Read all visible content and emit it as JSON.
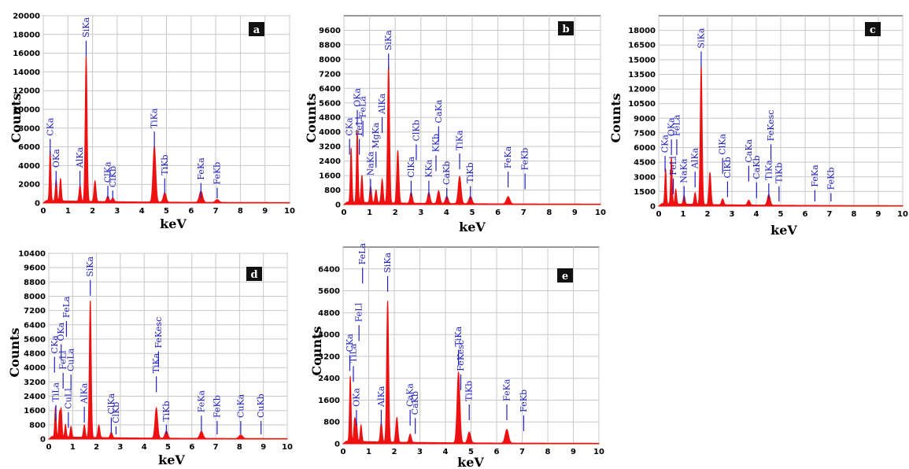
{
  "colors": {
    "spectrum": "#ee1111",
    "peak_label": "#2020c0",
    "grid": "#c8c8c8",
    "plot_bg": "#ffffff"
  },
  "chart_data": [
    {
      "type": "area",
      "panel_label": "a",
      "xlabel": "keV",
      "ylabel": "Counts",
      "xlim": [
        0,
        10
      ],
      "ylim": [
        0,
        20000
      ],
      "x_ticks": [
        0,
        1,
        2,
        3,
        4,
        5,
        6,
        7,
        8,
        9,
        10
      ],
      "y_ticks": [
        0,
        2000,
        4000,
        6000,
        8000,
        10000,
        12000,
        14000,
        16000,
        18000,
        20000
      ],
      "grid": true,
      "peaks": [
        [
          0.28,
          5400
        ],
        [
          0.52,
          2300
        ],
        [
          0.7,
          2400
        ],
        [
          1.49,
          1700
        ],
        [
          1.74,
          15600
        ],
        [
          2.1,
          2200
        ],
        [
          2.62,
          600
        ],
        [
          2.82,
          400
        ],
        [
          4.51,
          6000
        ],
        [
          4.93,
          1000
        ],
        [
          6.4,
          1200
        ],
        [
          7.06,
          300
        ]
      ],
      "peak_labels": [
        {
          "text": "CKa",
          "x": 0.28,
          "y": 7000
        },
        {
          "text": "OKa",
          "x": 0.52,
          "y": 3600
        },
        {
          "text": "AlKa",
          "x": 1.49,
          "y": 3600
        },
        {
          "text": "SiKa",
          "x": 1.74,
          "y": 17500
        },
        {
          "text": "ClKa",
          "x": 2.62,
          "y": 2000
        },
        {
          "text": "ClKb",
          "x": 2.82,
          "y": 1500
        },
        {
          "text": "TiKa",
          "x": 4.51,
          "y": 7800
        },
        {
          "text": "TiKb",
          "x": 4.93,
          "y": 2800
        },
        {
          "text": "FeKa",
          "x": 6.4,
          "y": 2300
        },
        {
          "text": "FeKb",
          "x": 7.06,
          "y": 1800
        }
      ]
    },
    {
      "type": "area",
      "panel_label": "b",
      "xlabel": "keV",
      "ylabel": "Counts",
      "xlim": [
        0,
        10
      ],
      "ylim": [
        0,
        10400
      ],
      "x_ticks": [
        0,
        1,
        2,
        3,
        4,
        5,
        6,
        7,
        8,
        9,
        10
      ],
      "y_ticks": [
        0,
        800,
        1600,
        2400,
        3200,
        4000,
        4800,
        5600,
        6400,
        7200,
        8000,
        8800,
        9600
      ],
      "grid": true,
      "peaks": [
        [
          0.28,
          3000
        ],
        [
          0.52,
          4000
        ],
        [
          0.7,
          1500
        ],
        [
          1.04,
          900
        ],
        [
          1.25,
          700
        ],
        [
          1.49,
          1300
        ],
        [
          1.74,
          7600
        ],
        [
          2.1,
          2900
        ],
        [
          2.62,
          600
        ],
        [
          3.31,
          600
        ],
        [
          3.69,
          700
        ],
        [
          4.01,
          400
        ],
        [
          4.51,
          1500
        ],
        [
          4.93,
          400
        ],
        [
          6.4,
          400
        ]
      ],
      "peak_labels": [
        {
          "text": "CKa",
          "x": 0.22,
          "y": 3700
        },
        {
          "text": "OKa",
          "x": 0.52,
          "y": 5300
        },
        {
          "text": "FeLl",
          "x": 0.6,
          "y": 3700
        },
        {
          "text": "FeLa",
          "x": 0.74,
          "y": 4700
        },
        {
          "text": "NaKa",
          "x": 1.04,
          "y": 1500
        },
        {
          "text": "MgKa",
          "x": 1.25,
          "y": 3000
        },
        {
          "text": "AlKa",
          "x": 1.49,
          "y": 4900
        },
        {
          "text": "SiKa",
          "x": 1.74,
          "y": 8400
        },
        {
          "text": "ClKa",
          "x": 2.62,
          "y": 1400
        },
        {
          "text": "ClKb",
          "x": 2.82,
          "y": 3400
        },
        {
          "text": "KKa",
          "x": 3.31,
          "y": 1400
        },
        {
          "text": "KKb",
          "x": 3.59,
          "y": 2800
        },
        {
          "text": "CaKa",
          "x": 3.69,
          "y": 4400
        },
        {
          "text": "CaKb",
          "x": 4.01,
          "y": 1000
        },
        {
          "text": "TiKa",
          "x": 4.51,
          "y": 2900
        },
        {
          "text": "TiKb",
          "x": 4.93,
          "y": 1100
        },
        {
          "text": "FeKa",
          "x": 6.4,
          "y": 1900
        },
        {
          "text": "FeKb",
          "x": 7.06,
          "y": 1800
        }
      ]
    },
    {
      "type": "area",
      "panel_label": "c",
      "xlabel": "keV",
      "ylabel": "Counts",
      "xlim": [
        0,
        10
      ],
      "ylim": [
        0,
        19500
      ],
      "x_ticks": [
        0,
        1,
        2,
        3,
        4,
        5,
        6,
        7,
        8,
        9,
        10
      ],
      "y_ticks": [
        0,
        1500,
        3000,
        4500,
        6000,
        7500,
        9000,
        10500,
        12000,
        13500,
        15000,
        16500,
        18000
      ],
      "grid": true,
      "peaks": [
        [
          0.28,
          3600
        ],
        [
          0.52,
          4800
        ],
        [
          0.7,
          1500
        ],
        [
          1.04,
          900
        ],
        [
          1.49,
          1200
        ],
        [
          1.74,
          14300
        ],
        [
          2.1,
          3300
        ],
        [
          2.62,
          600
        ],
        [
          3.69,
          500
        ],
        [
          4.51,
          1100
        ]
      ],
      "peak_labels": [
        {
          "text": "CKa",
          "x": 0.26,
          "y": 5300
        },
        {
          "text": "OKa",
          "x": 0.52,
          "y": 7000
        },
        {
          "text": "FeLl",
          "x": 0.6,
          "y": 3000
        },
        {
          "text": "FeLa",
          "x": 0.74,
          "y": 7000
        },
        {
          "text": "NaKa",
          "x": 1.04,
          "y": 2200
        },
        {
          "text": "AlKa",
          "x": 1.49,
          "y": 3700
        },
        {
          "text": "SiKa",
          "x": 1.74,
          "y": 16000
        },
        {
          "text": "ClKa",
          "x": 2.62,
          "y": 5100
        },
        {
          "text": "ClKb",
          "x": 2.82,
          "y": 2700
        },
        {
          "text": "CaKa",
          "x": 3.69,
          "y": 4300
        },
        {
          "text": "CaKb",
          "x": 4.01,
          "y": 2600
        },
        {
          "text": "TiKa",
          "x": 4.51,
          "y": 2500
        },
        {
          "text": "FeKesc",
          "x": 4.6,
          "y": 6500
        },
        {
          "text": "TiKb",
          "x": 4.93,
          "y": 2200
        },
        {
          "text": "FeKa",
          "x": 6.4,
          "y": 1800
        },
        {
          "text": "FeKb",
          "x": 7.06,
          "y": 1500
        }
      ]
    },
    {
      "type": "area",
      "panel_label": "d",
      "xlabel": "keV",
      "ylabel": "Counts",
      "xlim": [
        0,
        10
      ],
      "ylim": [
        0,
        10400
      ],
      "x_ticks": [
        0,
        1,
        2,
        3,
        4,
        5,
        6,
        7,
        8,
        9,
        10
      ],
      "y_ticks": [
        0,
        800,
        1600,
        2400,
        3200,
        4000,
        4800,
        5600,
        6400,
        7200,
        8000,
        8800,
        9600,
        10400
      ],
      "grid": true,
      "peaks": [
        [
          0.28,
          1700
        ],
        [
          0.45,
          1300
        ],
        [
          0.52,
          1500
        ],
        [
          0.7,
          700
        ],
        [
          0.93,
          600
        ],
        [
          1.49,
          700
        ],
        [
          1.74,
          7700
        ],
        [
          2.1,
          700
        ],
        [
          2.62,
          300
        ],
        [
          4.51,
          1700
        ],
        [
          4.93,
          400
        ],
        [
          6.4,
          400
        ],
        [
          8.05,
          200
        ]
      ],
      "peak_labels": [
        {
          "text": "CKa",
          "x": 0.24,
          "y": 4700
        },
        {
          "text": "TiLa",
          "x": 0.3,
          "y": 2000
        },
        {
          "text": "OKa",
          "x": 0.52,
          "y": 5400
        },
        {
          "text": "FeLl",
          "x": 0.6,
          "y": 3800
        },
        {
          "text": "FeLa",
          "x": 0.74,
          "y": 6700
        },
        {
          "text": "CuLl",
          "x": 0.82,
          "y": 1600
        },
        {
          "text": "CuLa",
          "x": 0.93,
          "y": 3700
        },
        {
          "text": "AlKa",
          "x": 1.49,
          "y": 1900
        },
        {
          "text": "SiKa",
          "x": 1.74,
          "y": 9000
        },
        {
          "text": "ClKa",
          "x": 2.62,
          "y": 1300
        },
        {
          "text": "ClKb",
          "x": 2.82,
          "y": 800
        },
        {
          "text": "TiKa",
          "x": 4.51,
          "y": 3600
        },
        {
          "text": "FeKesc",
          "x": 4.6,
          "y": 5000
        },
        {
          "text": "TiKb",
          "x": 4.93,
          "y": 900
        },
        {
          "text": "FeKa",
          "x": 6.4,
          "y": 1400
        },
        {
          "text": "FeKb",
          "x": 7.06,
          "y": 1100
        },
        {
          "text": "CuKa",
          "x": 8.05,
          "y": 1100
        },
        {
          "text": "CuKb",
          "x": 8.9,
          "y": 1100
        }
      ]
    },
    {
      "type": "area",
      "panel_label": "e",
      "xlabel": "keV",
      "ylabel": "Counts",
      "xlim": [
        0,
        10
      ],
      "ylim": [
        0,
        7200
      ],
      "x_ticks": [
        0,
        1,
        2,
        3,
        4,
        5,
        6,
        7,
        8,
        9,
        10
      ],
      "y_ticks": [
        0,
        800,
        1600,
        2400,
        3200,
        4000,
        4800,
        5600,
        6400
      ],
      "grid": true,
      "peaks": [
        [
          0.28,
          2400
        ],
        [
          0.45,
          800
        ],
        [
          0.52,
          700
        ],
        [
          0.7,
          600
        ],
        [
          1.49,
          700
        ],
        [
          1.74,
          5200
        ],
        [
          2.1,
          900
        ],
        [
          2.62,
          300
        ],
        [
          4.51,
          2600
        ],
        [
          4.93,
          400
        ],
        [
          6.4,
          500
        ]
      ],
      "peak_labels": [
        {
          "text": "CKa",
          "x": 0.26,
          "y": 3300
        },
        {
          "text": "TiLa",
          "x": 0.4,
          "y": 2900
        },
        {
          "text": "OKa",
          "x": 0.52,
          "y": 1300
        },
        {
          "text": "FeLl",
          "x": 0.62,
          "y": 4400
        },
        {
          "text": "FeLa",
          "x": 0.76,
          "y": 6500
        },
        {
          "text": "AlKa",
          "x": 1.49,
          "y": 1300
        },
        {
          "text": "SiKa",
          "x": 1.74,
          "y": 6200
        },
        {
          "text": "CaKa",
          "x": 2.62,
          "y": 1300
        },
        {
          "text": "CaKb",
          "x": 2.82,
          "y": 1000
        },
        {
          "text": "TiKa",
          "x": 4.51,
          "y": 3500
        },
        {
          "text": "FeKesc",
          "x": 4.6,
          "y": 2600
        },
        {
          "text": "TiKb",
          "x": 4.93,
          "y": 1500
        },
        {
          "text": "FeKa",
          "x": 6.4,
          "y": 1500
        },
        {
          "text": "FeKb",
          "x": 7.06,
          "y": 1100
        }
      ]
    }
  ]
}
